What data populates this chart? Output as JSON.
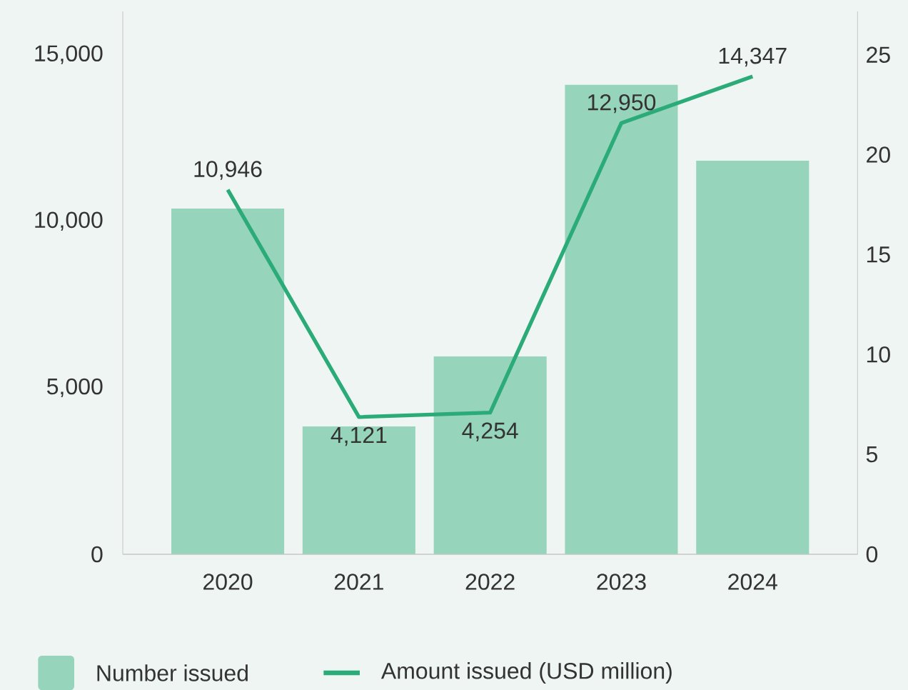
{
  "chart_data": {
    "type": "bar",
    "categories": [
      "2020",
      "2021",
      "2022",
      "2023",
      "2024"
    ],
    "series": [
      {
        "name": "Number issued",
        "type": "bar",
        "axis": "y2",
        "color": "#96d4bb",
        "values": [
          17.3,
          6.4,
          9.9,
          23.5,
          19.7
        ]
      },
      {
        "name": "Amount issued (USD million)",
        "type": "line",
        "color": "#2bab78",
        "values": [
          10946,
          4121,
          4254,
          12950,
          14347
        ],
        "value_labels": [
          "10,946",
          "4,121",
          "4,254",
          "12,950",
          "14,347"
        ]
      }
    ],
    "ylim": [
      0,
      16300
    ],
    "yticks": [
      0,
      {
        "value": 5000,
        "label": "5,000"
      },
      {
        "value": 10000,
        "label": "10,000"
      },
      {
        "value": 15000,
        "label": "15,000"
      }
    ],
    "y2lim": [
      0,
      27.17
    ],
    "y2ticks": [
      0,
      5,
      10,
      15,
      20,
      25
    ],
    "legend": "bottom",
    "grid": false
  }
}
